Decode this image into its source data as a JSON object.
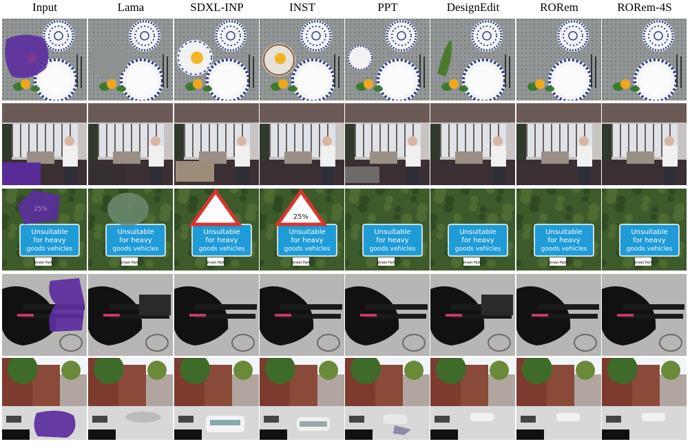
{
  "figure": {
    "columns": [
      "Input",
      "Lama",
      "SDXL-INP",
      "INST",
      "PPT",
      "DesignEdit",
      "RORem",
      "RORem-4S"
    ]
  },
  "scenes": [
    {
      "id": "plates",
      "sign_lines": []
    },
    {
      "id": "living-room",
      "sign_lines": []
    },
    {
      "id": "road-sign",
      "sign_lines": [
        "Unsuitable",
        "for heavy",
        "goods vehicles"
      ],
      "mask_text": "25%",
      "small_sign": "Street Path"
    },
    {
      "id": "dog",
      "sign_lines": []
    },
    {
      "id": "street",
      "sign_lines": []
    }
  ],
  "colors": {
    "mask": "#5b2d9e",
    "sign_blue": "#1f9bd8",
    "hedge": "#3d5a2a",
    "table": "#7f8483",
    "plate_pattern": "#2a3f8a"
  }
}
